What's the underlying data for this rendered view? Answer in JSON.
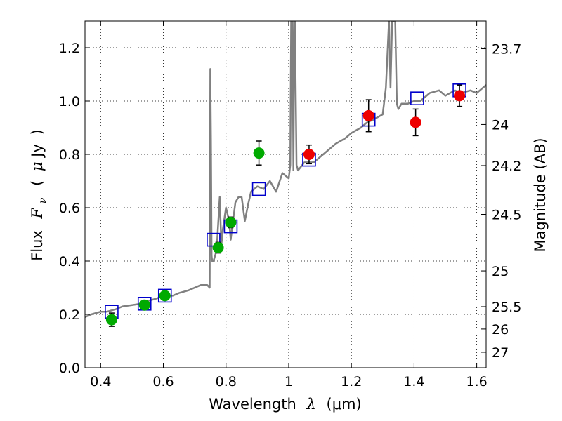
{
  "chart_data": {
    "type": "scatter",
    "title": "",
    "xlabel_text": "Wavelength",
    "xlabel_symbol": "λ",
    "xlabel_unit": "(μm)",
    "ylabel_text": "Flux",
    "ylabel_symbol": "F",
    "ylabel_subscript": "ν",
    "ylabel_unit_open": "(",
    "ylabel_unit_mu": "μ",
    "ylabel_unit_rest": "Jy",
    "ylabel_unit_close": ")",
    "y2label": "Magnitude (AB)",
    "xlim": [
      0.35,
      1.63
    ],
    "ylim": [
      0.0,
      1.3
    ],
    "grid": true,
    "x_ticks": [
      0.4,
      0.6,
      0.8,
      1.0,
      1.2,
      1.4,
      1.6
    ],
    "x_tick_labels": [
      "0.4",
      "0.6",
      "0.8",
      "1",
      "1.2",
      "1.4",
      "1.6"
    ],
    "y_ticks": [
      0.0,
      0.2,
      0.4,
      0.6,
      0.8,
      1.0,
      1.2
    ],
    "y_tick_labels": [
      "0.0",
      "0.2",
      "0.4",
      "0.6",
      "0.8",
      "1.0",
      "1.2"
    ],
    "y2_ticks": [
      {
        "label": "23.7",
        "flux": 1.196
      },
      {
        "label": "24",
        "flux": 0.912
      },
      {
        "label": "24.2",
        "flux": 0.758
      },
      {
        "label": "24.5",
        "flux": 0.575
      },
      {
        "label": "25",
        "flux": 0.363
      },
      {
        "label": "25.5",
        "flux": 0.229
      },
      {
        "label": "26",
        "flux": 0.145
      },
      {
        "label": "27",
        "flux": 0.058
      }
    ],
    "colors": {
      "green": "#00aa00",
      "red": "#ee0000",
      "model_box": "#0000cc",
      "template": "#808080",
      "error_bar": "#000000"
    },
    "series": [
      {
        "name": "template_spectrum",
        "kind": "line",
        "x": [
          0.35,
          0.37,
          0.4,
          0.42,
          0.45,
          0.47,
          0.5,
          0.53,
          0.55,
          0.58,
          0.6,
          0.63,
          0.65,
          0.68,
          0.7,
          0.72,
          0.74,
          0.748,
          0.75,
          0.752,
          0.754,
          0.756,
          0.76,
          0.77,
          0.78,
          0.785,
          0.79,
          0.8,
          0.81,
          0.815,
          0.82,
          0.83,
          0.84,
          0.85,
          0.86,
          0.87,
          0.88,
          0.9,
          0.92,
          0.94,
          0.96,
          0.98,
          1.0,
          1.005,
          1.008,
          1.01,
          1.012,
          1.015,
          1.018,
          1.02,
          1.025,
          1.03,
          1.05,
          1.08,
          1.1,
          1.13,
          1.15,
          1.18,
          1.2,
          1.23,
          1.25,
          1.27,
          1.3,
          1.31,
          1.32,
          1.325,
          1.33,
          1.335,
          1.34,
          1.345,
          1.35,
          1.36,
          1.38,
          1.4,
          1.42,
          1.45,
          1.48,
          1.5,
          1.53,
          1.55,
          1.58,
          1.6,
          1.63
        ],
        "y": [
          0.19,
          0.2,
          0.21,
          0.21,
          0.22,
          0.23,
          0.235,
          0.24,
          0.25,
          0.26,
          0.27,
          0.27,
          0.28,
          0.29,
          0.3,
          0.31,
          0.31,
          0.3,
          1.12,
          0.85,
          0.42,
          0.4,
          0.4,
          0.44,
          0.64,
          0.46,
          0.52,
          0.6,
          0.55,
          0.48,
          0.53,
          0.62,
          0.64,
          0.64,
          0.55,
          0.61,
          0.66,
          0.68,
          0.67,
          0.7,
          0.66,
          0.73,
          0.71,
          0.76,
          1.3,
          1.3,
          1.3,
          0.74,
          1.3,
          1.3,
          0.76,
          0.74,
          0.77,
          0.77,
          0.79,
          0.82,
          0.84,
          0.86,
          0.88,
          0.9,
          0.92,
          0.93,
          0.95,
          1.05,
          1.3,
          1.05,
          1.3,
          1.3,
          1.3,
          0.99,
          0.97,
          0.99,
          0.99,
          1.0,
          1.0,
          1.03,
          1.04,
          1.02,
          1.04,
          1.03,
          1.04,
          1.03,
          1.06
        ]
      },
      {
        "name": "model_photometry",
        "kind": "open_square",
        "x": [
          0.435,
          0.54,
          0.605,
          0.76,
          0.815,
          0.905,
          1.065,
          1.255,
          1.41,
          1.545
        ],
        "y": [
          0.21,
          0.24,
          0.27,
          0.48,
          0.53,
          0.67,
          0.78,
          0.93,
          1.01,
          1.04
        ]
      },
      {
        "name": "observed_green",
        "kind": "filled_circle",
        "x": [
          0.435,
          0.54,
          0.605,
          0.775,
          0.815,
          0.905
        ],
        "y": [
          0.18,
          0.235,
          0.27,
          0.45,
          0.545,
          0.805
        ],
        "yerr": [
          0.025,
          0.015,
          0.015,
          0.02,
          0.02,
          0.045
        ]
      },
      {
        "name": "observed_red",
        "kind": "filled_circle",
        "x": [
          1.065,
          1.255,
          1.405,
          1.545
        ],
        "y": [
          0.8,
          0.945,
          0.92,
          1.02
        ],
        "yerr": [
          0.035,
          0.06,
          0.05,
          0.04
        ]
      }
    ]
  }
}
